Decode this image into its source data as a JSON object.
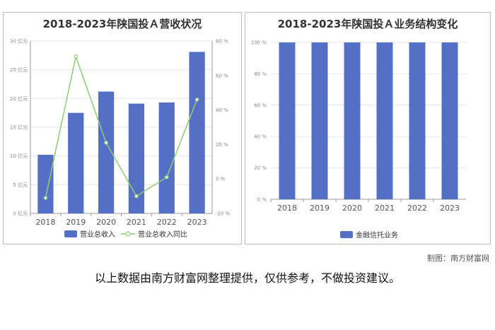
{
  "colors": {
    "bar": "#5470c6",
    "line": "#91cc75",
    "grid": "#e6e6e6",
    "axis": "#999999"
  },
  "chart_data": [
    {
      "type": "bar",
      "title": "2018-2023年陕国投Ａ营收状况",
      "categories": [
        "2018",
        "2019",
        "2020",
        "2021",
        "2022",
        "2023"
      ],
      "series": [
        {
          "name": "营业总收入",
          "type": "bar",
          "axis": "left",
          "values": [
            10.2,
            17.5,
            21.2,
            19.1,
            19.3,
            28.1
          ]
        },
        {
          "name": "营业总收入同比",
          "type": "line",
          "axis": "right",
          "values": [
            -11,
            71,
            21,
            -10,
            1,
            46
          ]
        }
      ],
      "y_left": {
        "ylim": [
          0,
          30
        ],
        "ticks": [
          "0 亿元",
          "5 亿元",
          "10 亿元",
          "15 亿元",
          "20 亿元",
          "25 亿元",
          "30 亿元"
        ]
      },
      "y_right": {
        "ylim": [
          -20,
          80
        ],
        "ticks": [
          "-20 %",
          "0 %",
          "20 %",
          "40 %",
          "60 %",
          "80 %"
        ]
      },
      "legend": [
        "营业总收入",
        "营业总收入同比"
      ],
      "legend_position": "bottom",
      "grid": true
    },
    {
      "type": "bar",
      "title": "2018-2023年陕国投Ａ业务结构变化",
      "categories": [
        "2018",
        "2019",
        "2020",
        "2021",
        "2022",
        "2023"
      ],
      "series": [
        {
          "name": "金融信托业务",
          "values": [
            100,
            100,
            100,
            100,
            100,
            100
          ]
        }
      ],
      "ylim": [
        0,
        100
      ],
      "ticks": [
        "0 %",
        "20 %",
        "40 %",
        "60 %",
        "80 %",
        "100 %"
      ],
      "legend": [
        "金融信托业务"
      ],
      "legend_position": "bottom",
      "grid": true
    }
  ],
  "footer": {
    "credit": "制图：南方财富网",
    "disclaimer": "以上数据由南方财富网整理提供，仅供参考，不做投资建议。"
  }
}
